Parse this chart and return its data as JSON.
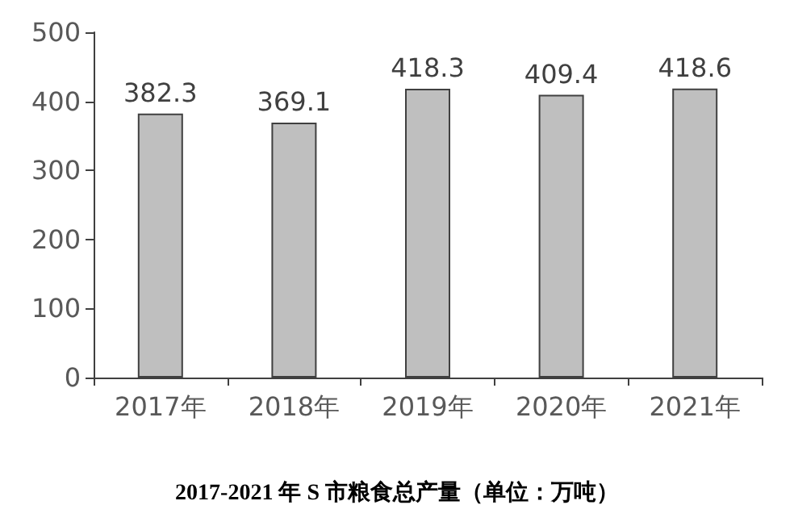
{
  "chart_data": {
    "type": "bar",
    "title": "2017-2021 年 S 市粮食总产量（单位：万吨）",
    "categories": [
      "2017年",
      "2018年",
      "2019年",
      "2020年",
      "2021年"
    ],
    "values": [
      382.3,
      369.1,
      418.3,
      409.4,
      418.6
    ],
    "color": "#bfbfbf",
    "ylim": [
      0,
      500
    ],
    "yticks": [
      0,
      100,
      200,
      300,
      400,
      500
    ],
    "grid": false,
    "data_labels": true
  }
}
